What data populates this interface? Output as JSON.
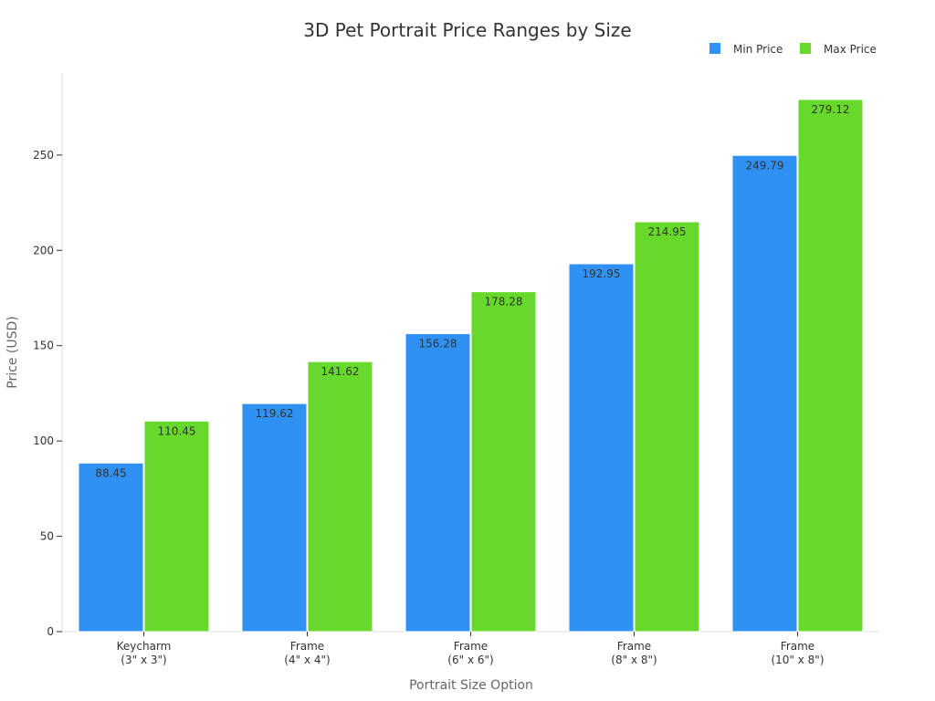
{
  "chart_data": {
    "type": "bar",
    "title": "3D Pet Portrait Price Ranges by Size",
    "xlabel": "Portrait Size Option",
    "ylabel": "Price (USD)",
    "categories": [
      [
        "Keycharm",
        "(3\" x 3\")"
      ],
      [
        "Frame",
        "(4\" x 4\")"
      ],
      [
        "Frame",
        "(6\" x 6\")"
      ],
      [
        "Frame",
        "(8\" x 8\")"
      ],
      [
        "Frame",
        "(10\" x 8\")"
      ]
    ],
    "series": [
      {
        "name": "Min Price",
        "color": "#3091f5",
        "values": [
          88.45,
          119.62,
          156.28,
          192.95,
          249.79
        ],
        "labels": [
          "88.45",
          "119.62",
          "156.28",
          "192.95",
          "249.79"
        ]
      },
      {
        "name": "Max Price",
        "color": "#66d92a",
        "values": [
          110.45,
          141.62,
          178.28,
          214.95,
          279.12
        ],
        "labels": [
          "110.45",
          "141.62",
          "178.28",
          "214.95",
          "279.12"
        ]
      }
    ],
    "ylim": [
      0,
      293
    ],
    "yticks": [
      0,
      50,
      100,
      150,
      200,
      250
    ],
    "ytick_labels": [
      "0",
      "50",
      "100",
      "150",
      "200",
      "250"
    ],
    "grid": false,
    "legend_position": "top-right"
  }
}
